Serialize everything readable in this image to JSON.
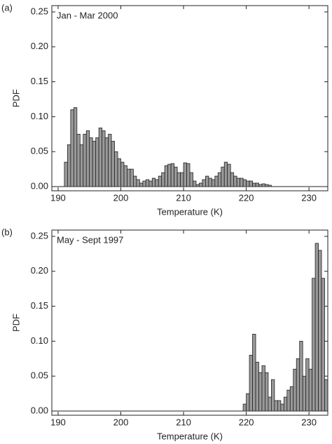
{
  "chart_data": [
    {
      "type": "histogram",
      "panel_label": "(a)",
      "annotation": "Jan - Mar 2000",
      "xlabel": "Temperature  (K)",
      "ylabel": "PDF",
      "color": "#999999",
      "xlim": [
        189,
        233
      ],
      "ylim": [
        -0.006,
        0.259
      ],
      "xticks": [
        190,
        200,
        210,
        220,
        230
      ],
      "yticks": [
        {
          "value": 0,
          "label": "0.00"
        },
        {
          "value": 0.05,
          "label": "0.05"
        },
        {
          "value": 0.1,
          "label": "0.10"
        },
        {
          "value": 0.15,
          "label": "0.15"
        },
        {
          "value": 0.2,
          "label": "0.20"
        },
        {
          "value": 0.25,
          "label": "0.25"
        }
      ],
      "bins": [
        191,
        191.5,
        192,
        192.5,
        193,
        193.5,
        194,
        194.5,
        195,
        195.5,
        196,
        196.5,
        197,
        197.5,
        198,
        198.5,
        199,
        199.5,
        200,
        200.5,
        201,
        201.5,
        202,
        202.5,
        203,
        203.5,
        204,
        204.5,
        205,
        205.5,
        206,
        206.5,
        207,
        207.5,
        208,
        208.5,
        209,
        209.5,
        210,
        210.5,
        211,
        211.5,
        212,
        212.5,
        213,
        213.5,
        214,
        214.5,
        215,
        215.5,
        216,
        216.5,
        217,
        217.5,
        218,
        218.5,
        219,
        219.5,
        220,
        220.5,
        221,
        221.5,
        222,
        222.5,
        223,
        223.5,
        224
      ],
      "values": [
        0.035,
        0.06,
        0.11,
        0.113,
        0.075,
        0.06,
        0.075,
        0.08,
        0.07,
        0.065,
        0.07,
        0.084,
        0.08,
        0.07,
        0.075,
        0.065,
        0.05,
        0.04,
        0.035,
        0.03,
        0.025,
        0.025,
        0.015,
        0.01,
        0.005,
        0.008,
        0.01,
        0.008,
        0.012,
        0.01,
        0.015,
        0.02,
        0.03,
        0.032,
        0.033,
        0.028,
        0.02,
        0.02,
        0.034,
        0.033,
        0.02,
        0.008,
        0.003,
        0.005,
        0.01,
        0.015,
        0.012,
        0.01,
        0.015,
        0.02,
        0.028,
        0.035,
        0.032,
        0.02,
        0.015,
        0.012,
        0.012,
        0.01,
        0.008,
        0.008,
        0.005,
        0.005,
        0.003,
        0.004,
        0.003,
        0.002
      ]
    },
    {
      "type": "histogram",
      "panel_label": "(b)",
      "annotation": "May - Sept 1997",
      "xlabel": "Temperature  (K)",
      "ylabel": "PDF",
      "color": "#999999",
      "xlim": [
        189,
        233
      ],
      "ylim": [
        -0.006,
        0.259
      ],
      "xticks": [
        190,
        200,
        210,
        220,
        230
      ],
      "yticks": [
        {
          "value": 0,
          "label": "0.00"
        },
        {
          "value": 0.05,
          "label": "0.05"
        },
        {
          "value": 0.1,
          "label": "0.10"
        },
        {
          "value": 0.15,
          "label": "0.15"
        },
        {
          "value": 0.2,
          "label": "0.20"
        },
        {
          "value": 0.25,
          "label": "0.25"
        }
      ],
      "bins": [
        219.5,
        220,
        220.5,
        221,
        221.5,
        222,
        222.5,
        223,
        223.5,
        224,
        224.5,
        225,
        225.5,
        226,
        226.5,
        227,
        227.5,
        228,
        228.5,
        229,
        229.5,
        230,
        230.5,
        231,
        231.5,
        232,
        232.5,
        233
      ],
      "values": [
        0.01,
        0.025,
        0.08,
        0.11,
        0.07,
        0.055,
        0.065,
        0.055,
        0.02,
        0.045,
        0.015,
        0.015,
        0.01,
        0.02,
        0.03,
        0.035,
        0.06,
        0.075,
        0.1,
        0.05,
        0.075,
        0.06,
        0.19,
        0.24,
        0.23,
        0.19,
        0.045
      ]
    }
  ]
}
